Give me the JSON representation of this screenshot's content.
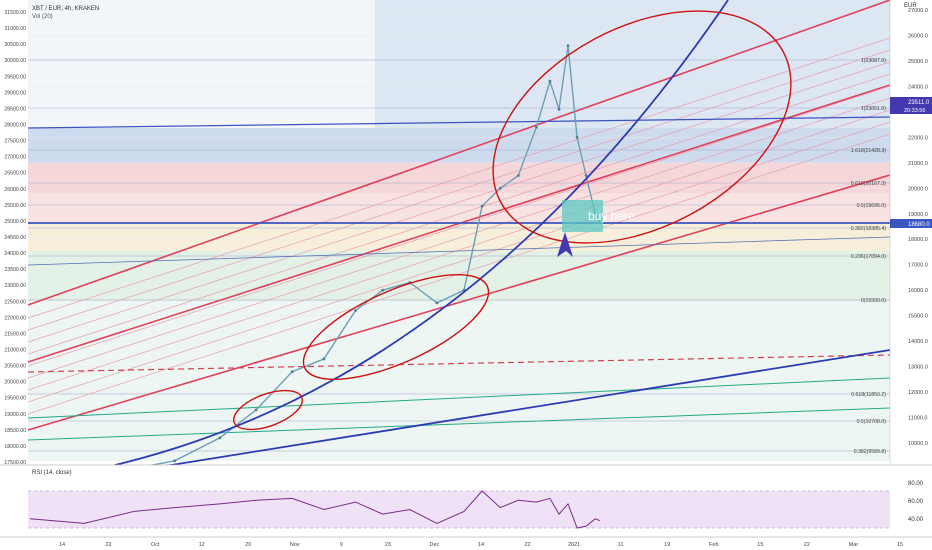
{
  "header": {
    "symbol_line": "XBT / EUR, 4h, KRAKEN",
    "volume_label": "Vol (20)"
  },
  "rsi_panel": {
    "label": "RSI (14, close)",
    "levels": [
      "80.00",
      "60.00",
      "40.00"
    ]
  },
  "right_axis": {
    "title": "EUR",
    "ticks": [
      "27000.0",
      "26000.0",
      "25000.0",
      "24000.0",
      "23000.0",
      "22000.0",
      "21000.0",
      "20000.0",
      "19000.0",
      "18000.0",
      "17000.0",
      "16000.0",
      "15000.0",
      "14000.0",
      "13000.0",
      "12000.0",
      "11000.0",
      "10000.0"
    ],
    "price_tags": [
      "23511.0",
      "20:33:56",
      "18680.0"
    ]
  },
  "left_axis": {
    "ticks": [
      "31500.00",
      "31000.00",
      "30500.00",
      "30000.00",
      "29500.00",
      "29000.00",
      "28500.00",
      "28000.00",
      "27500.00",
      "27000.00",
      "26500.00",
      "26000.00",
      "25500.00",
      "25000.00",
      "24500.00",
      "24000.00",
      "23500.00",
      "23000.00",
      "22500.00",
      "22000.00",
      "21500.00",
      "21000.00",
      "20500.00",
      "20000.00",
      "19500.00",
      "19000.00",
      "18500.00",
      "18000.00",
      "17500.00"
    ]
  },
  "fib_labels": [
    "1(23087.0)",
    "1(23051.0)",
    "1.618(21428.3)",
    "0.618(20167.3)",
    "0.5(19696.0)",
    "0.382(18385.4)",
    "0.236(17094.0)",
    "0(15509.0)",
    "0.618(11850.2)",
    "0.5(10708.0)",
    "0.382(9589.8)"
  ],
  "annotation": {
    "text": "buy here"
  },
  "time_axis": [
    "14",
    "22",
    "Oct",
    "12",
    "20",
    "Nov",
    "9",
    "23",
    "Dec",
    "14",
    "22",
    "2021",
    "11",
    "19",
    "Feb",
    "15",
    "22",
    "Mar",
    "15"
  ],
  "colors": {
    "red_channel": "#e0405a",
    "blue_curve": "#2a3bb5",
    "ellipse": "#cc1111",
    "green_line": "#22aa88",
    "teal_box": "#5bc8c0",
    "candle": "#6a9fb5"
  },
  "chart_data": {
    "type": "line",
    "title": "XBT / EUR, 4h, KRAKEN",
    "xlabel": "",
    "ylabel": "EUR",
    "ylim": [
      9300,
      27600
    ],
    "x": [
      "2020-09-08",
      "2020-09-20",
      "2020-10-01",
      "2020-10-10",
      "2020-10-20",
      "2020-10-28",
      "2020-11-05",
      "2020-11-12",
      "2020-11-19",
      "2020-11-25",
      "2020-12-01",
      "2020-12-07",
      "2020-12-13",
      "2020-12-17",
      "2020-12-21",
      "2020-12-25",
      "2020-12-29",
      "2021-01-01",
      "2021-01-03",
      "2021-01-05",
      "2021-01-07",
      "2021-01-09",
      "2021-01-11",
      "2021-01-12"
    ],
    "series": [
      {
        "values": [
          8650,
          8800,
          9000,
          9300,
          10200,
          11300,
          12800,
          13300,
          15200,
          16000,
          16300,
          15500,
          16000,
          19300,
          20000,
          20500,
          22400,
          24200,
          23100,
          25600,
          22000,
          20500,
          19000,
          18680
        ]
      }
    ],
    "rsi": [
      50,
      45,
      58,
      62,
      66,
      70,
      72,
      60,
      68,
      55,
      60,
      45,
      58,
      80,
      62,
      70,
      68,
      72,
      55,
      66,
      40,
      42,
      50,
      48
    ]
  }
}
